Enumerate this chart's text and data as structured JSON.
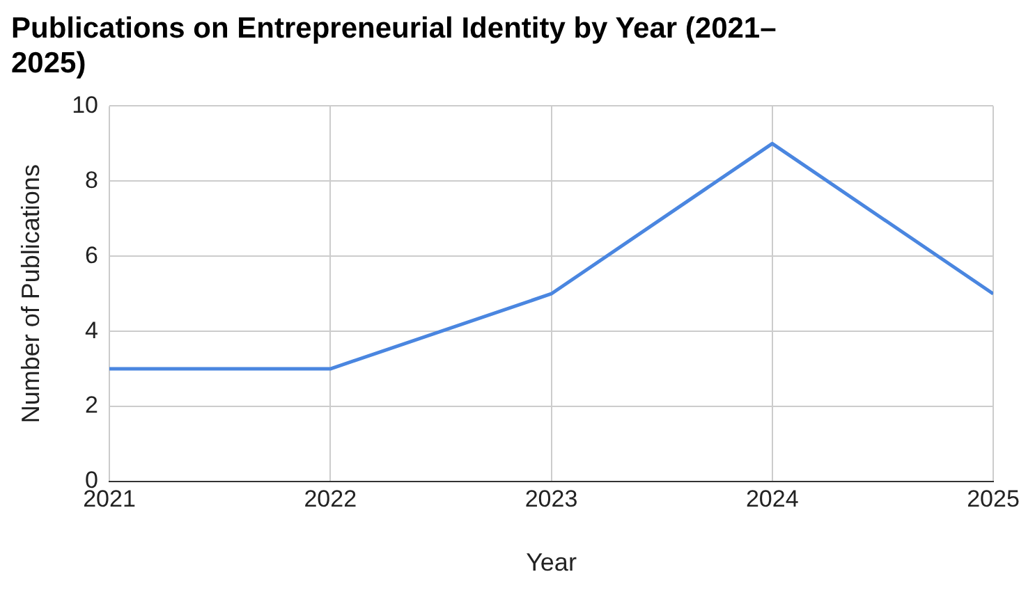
{
  "chart_data": {
    "type": "line",
    "title": "Publications on Entrepreneurial Identity by Year (2021–2025)",
    "xlabel": "Year",
    "ylabel": "Number of Publications",
    "x": [
      2021,
      2022,
      2023,
      2024,
      2025
    ],
    "series": [
      {
        "color": "#4a86e0",
        "values": [
          3,
          3,
          5,
          9,
          5
        ]
      }
    ],
    "xlim": [
      2021,
      2025
    ],
    "xticks": [
      2021,
      2022,
      2023,
      2024,
      2025
    ],
    "ylim": [
      0,
      10
    ],
    "yticks": [
      0,
      2,
      4,
      6,
      8,
      10
    ],
    "grid": true,
    "legend": false,
    "marker": "none",
    "line_style": "solid"
  }
}
